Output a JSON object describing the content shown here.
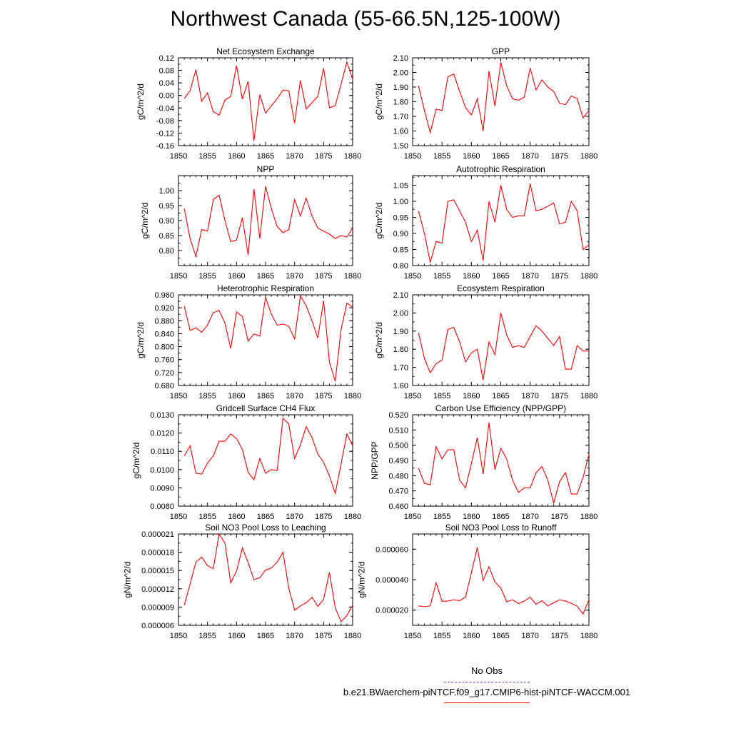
{
  "title": "Northwest Canada (55-66.5N,125-100W)",
  "legend": {
    "obs_label": "No Obs",
    "model_label": "b.e21.BWaerchem-piNTCF.f09_g17.CMIP6-hist-piNTCF-WACCM.001",
    "model_color": "#ff0000",
    "obs_color": "#4a4ad0"
  },
  "chart_data": [
    {
      "type": "line",
      "title": "Net Ecosystem Exchange",
      "ylabel": "gC/m^2/d",
      "xlim": [
        1850,
        1880
      ],
      "ylim": [
        -0.16,
        0.12
      ],
      "xticks": [
        "1850",
        "1855",
        "1860",
        "1865",
        "1870",
        "1875",
        "1880"
      ],
      "yticks": [
        "-0.16",
        "-0.12",
        "-0.08",
        "-0.04",
        "0.00",
        "0.04",
        "0.08",
        "0.12"
      ],
      "x": [
        1851,
        1852,
        1853,
        1854,
        1855,
        1856,
        1857,
        1858,
        1859,
        1860,
        1861,
        1862,
        1863,
        1864,
        1865,
        1866,
        1867,
        1868,
        1869,
        1870,
        1871,
        1872,
        1873,
        1874,
        1875,
        1876,
        1877,
        1878,
        1879,
        1880
      ],
      "y": [
        -0.01,
        0.015,
        0.082,
        -0.018,
        0.008,
        -0.052,
        -0.063,
        -0.015,
        -0.003,
        0.095,
        -0.012,
        0.045,
        -0.145,
        0.003,
        -0.056,
        -0.033,
        -0.01,
        0.017,
        0.015,
        -0.088,
        0.048,
        -0.043,
        -0.023,
        -0.003,
        0.087,
        -0.04,
        -0.032,
        0.035,
        0.107,
        0.052
      ]
    },
    {
      "type": "line",
      "title": "GPP",
      "ylabel": "gC/m^2/d",
      "xlim": [
        1850,
        1880
      ],
      "ylim": [
        1.5,
        2.1
      ],
      "xticks": [
        "1850",
        "1855",
        "1860",
        "1865",
        "1870",
        "1875",
        "1880"
      ],
      "yticks": [
        "1.50",
        "1.60",
        "1.70",
        "1.80",
        "1.90",
        "2.00",
        "2.10"
      ],
      "x": [
        1851,
        1852,
        1853,
        1854,
        1855,
        1856,
        1857,
        1858,
        1859,
        1860,
        1861,
        1862,
        1863,
        1864,
        1865,
        1866,
        1867,
        1868,
        1869,
        1870,
        1871,
        1872,
        1873,
        1874,
        1875,
        1876,
        1877,
        1878,
        1879,
        1880
      ],
      "y": [
        1.91,
        1.74,
        1.59,
        1.75,
        1.74,
        1.97,
        1.99,
        1.87,
        1.76,
        1.71,
        1.82,
        1.6,
        2.01,
        1.77,
        2.07,
        1.91,
        1.82,
        1.81,
        1.83,
        2.03,
        1.88,
        1.95,
        1.9,
        1.87,
        1.79,
        1.78,
        1.84,
        1.82,
        1.69,
        1.74
      ]
    },
    {
      "type": "line",
      "title": "NPP",
      "ylabel": "gC/m^2/d",
      "xlim": [
        1850,
        1880
      ],
      "ylim": [
        0.75,
        1.05
      ],
      "xticks": [
        "1850",
        "1855",
        "1860",
        "1865",
        "1870",
        "1875",
        "1880"
      ],
      "yticks": [
        "0.80",
        "0.85",
        "0.90",
        "0.95",
        "1.00"
      ],
      "x": [
        1851,
        1852,
        1853,
        1854,
        1855,
        1856,
        1857,
        1858,
        1859,
        1860,
        1861,
        1862,
        1863,
        1864,
        1865,
        1866,
        1867,
        1868,
        1869,
        1870,
        1871,
        1872,
        1873,
        1874,
        1875,
        1876,
        1877,
        1878,
        1879,
        1880
      ],
      "y": [
        0.94,
        0.84,
        0.78,
        0.87,
        0.865,
        0.97,
        0.985,
        0.9,
        0.83,
        0.835,
        0.91,
        0.785,
        1.005,
        0.84,
        1.015,
        0.94,
        0.88,
        0.86,
        0.87,
        0.97,
        0.915,
        0.975,
        0.915,
        0.875,
        0.865,
        0.855,
        0.84,
        0.85,
        0.845,
        0.875
      ]
    },
    {
      "type": "line",
      "title": "Autotrophic Respiration",
      "ylabel": "gC/m^2/d",
      "xlim": [
        1850,
        1880
      ],
      "ylim": [
        0.8,
        1.08
      ],
      "xticks": [
        "1850",
        "1855",
        "1860",
        "1865",
        "1870",
        "1875",
        "1880"
      ],
      "yticks": [
        "0.80",
        "0.85",
        "0.90",
        "0.95",
        "1.00",
        "1.05"
      ],
      "x": [
        1851,
        1852,
        1853,
        1854,
        1855,
        1856,
        1857,
        1858,
        1859,
        1860,
        1861,
        1862,
        1863,
        1864,
        1865,
        1866,
        1867,
        1868,
        1869,
        1870,
        1871,
        1872,
        1873,
        1874,
        1875,
        1876,
        1877,
        1878,
        1879,
        1880
      ],
      "y": [
        0.97,
        0.9,
        0.81,
        0.875,
        0.87,
        1.0,
        1.005,
        0.97,
        0.935,
        0.875,
        0.91,
        0.815,
        1.0,
        0.935,
        1.05,
        0.975,
        0.95,
        0.955,
        0.955,
        1.055,
        0.97,
        0.975,
        0.985,
        0.995,
        0.93,
        0.935,
        1.0,
        0.97,
        0.85,
        0.865
      ]
    },
    {
      "type": "line",
      "title": "Heterotrophic Respiration",
      "ylabel": "gC/m^2/d",
      "xlim": [
        1850,
        1880
      ],
      "ylim": [
        0.68,
        0.96
      ],
      "xticks": [
        "1850",
        "1855",
        "1860",
        "1865",
        "1870",
        "1875",
        "1880"
      ],
      "yticks": [
        "0.680",
        "0.720",
        "0.760",
        "0.800",
        "0.840",
        "0.880",
        "0.920",
        "0.960"
      ],
      "x": [
        1851,
        1852,
        1853,
        1854,
        1855,
        1856,
        1857,
        1858,
        1859,
        1860,
        1861,
        1862,
        1863,
        1864,
        1865,
        1866,
        1867,
        1868,
        1869,
        1870,
        1871,
        1872,
        1873,
        1874,
        1875,
        1876,
        1877,
        1878,
        1879,
        1880
      ],
      "y": [
        0.925,
        0.85,
        0.858,
        0.844,
        0.867,
        0.905,
        0.912,
        0.873,
        0.794,
        0.907,
        0.893,
        0.817,
        0.839,
        0.833,
        0.952,
        0.9,
        0.866,
        0.87,
        0.863,
        0.824,
        0.957,
        0.926,
        0.879,
        0.827,
        0.942,
        0.752,
        0.693,
        0.851,
        0.935,
        0.922
      ]
    },
    {
      "type": "line",
      "title": "Ecosystem Respiration",
      "ylabel": "gC/m^2/d",
      "xlim": [
        1850,
        1880
      ],
      "ylim": [
        1.6,
        2.1
      ],
      "xticks": [
        "1850",
        "1855",
        "1860",
        "1865",
        "1870",
        "1875",
        "1880"
      ],
      "yticks": [
        "1.60",
        "1.70",
        "1.80",
        "1.90",
        "2.00",
        "2.10"
      ],
      "x": [
        1851,
        1852,
        1853,
        1854,
        1855,
        1856,
        1857,
        1858,
        1859,
        1860,
        1861,
        1862,
        1863,
        1864,
        1865,
        1866,
        1867,
        1868,
        1869,
        1870,
        1871,
        1872,
        1873,
        1874,
        1875,
        1876,
        1877,
        1878,
        1879,
        1880
      ],
      "y": [
        1.89,
        1.75,
        1.67,
        1.72,
        1.74,
        1.91,
        1.92,
        1.84,
        1.73,
        1.78,
        1.8,
        1.63,
        1.84,
        1.77,
        2.0,
        1.88,
        1.81,
        1.82,
        1.81,
        1.87,
        1.93,
        1.9,
        1.86,
        1.82,
        1.87,
        1.69,
        1.69,
        1.82,
        1.79,
        1.79
      ]
    },
    {
      "type": "line",
      "title": "Gridcell Surface CH4 Flux",
      "ylabel": "gC/m^2/d",
      "xlim": [
        1850,
        1880
      ],
      "ylim": [
        0.008,
        0.013
      ],
      "xticks": [
        "1850",
        "1855",
        "1860",
        "1865",
        "1870",
        "1875",
        "1880"
      ],
      "yticks": [
        "0.0080",
        "0.0090",
        "0.0100",
        "0.0110",
        "0.0120",
        "0.0130"
      ],
      "x": [
        1851,
        1852,
        1853,
        1854,
        1855,
        1856,
        1857,
        1858,
        1859,
        1860,
        1861,
        1862,
        1863,
        1864,
        1865,
        1866,
        1867,
        1868,
        1869,
        1870,
        1871,
        1872,
        1873,
        1874,
        1875,
        1876,
        1877,
        1878,
        1879,
        1880
      ],
      "y": [
        0.01075,
        0.0113,
        0.0098,
        0.00975,
        0.01035,
        0.01075,
        0.01155,
        0.01155,
        0.01195,
        0.0117,
        0.0111,
        0.00985,
        0.00945,
        0.0106,
        0.0098,
        0.01,
        0.00995,
        0.0128,
        0.0125,
        0.0106,
        0.01135,
        0.01235,
        0.01175,
        0.01085,
        0.0104,
        0.00965,
        0.0087,
        0.0103,
        0.01195,
        0.0113
      ]
    },
    {
      "type": "line",
      "title": "Carbon Use Efficiency (NPP/GPP)",
      "ylabel": "NPP/GPP",
      "xlim": [
        1850,
        1880
      ],
      "ylim": [
        0.46,
        0.52
      ],
      "xticks": [
        "1850",
        "1855",
        "1860",
        "1865",
        "1870",
        "1875",
        "1880"
      ],
      "yticks": [
        "0.460",
        "0.470",
        "0.480",
        "0.490",
        "0.500",
        "0.510",
        "0.520"
      ],
      "x": [
        1851,
        1852,
        1853,
        1854,
        1855,
        1856,
        1857,
        1858,
        1859,
        1860,
        1861,
        1862,
        1863,
        1864,
        1865,
        1866,
        1867,
        1868,
        1869,
        1870,
        1871,
        1872,
        1873,
        1874,
        1875,
        1876,
        1877,
        1878,
        1879,
        1880
      ],
      "y": [
        0.485,
        0.475,
        0.474,
        0.499,
        0.491,
        0.497,
        0.497,
        0.477,
        0.472,
        0.488,
        0.505,
        0.481,
        0.515,
        0.484,
        0.498,
        0.491,
        0.477,
        0.469,
        0.472,
        0.472,
        0.482,
        0.486,
        0.477,
        0.462,
        0.476,
        0.482,
        0.468,
        0.468,
        0.479,
        0.494
      ]
    },
    {
      "type": "line",
      "title": "Soil NO3 Pool Loss to Leaching",
      "ylabel": "gN/m^2/d",
      "xlim": [
        1850,
        1880
      ],
      "ylim": [
        6e-06,
        2.1e-05
      ],
      "xticks": [
        "1850",
        "1855",
        "1860",
        "1865",
        "1870",
        "1875",
        "1880"
      ],
      "yticks": [
        "0.000006",
        "0.000009",
        "0.000012",
        "0.000015",
        "0.000018",
        "0.000021"
      ],
      "x": [
        1851,
        1852,
        1853,
        1854,
        1855,
        1856,
        1857,
        1858,
        1859,
        1860,
        1861,
        1862,
        1863,
        1864,
        1865,
        1866,
        1867,
        1868,
        1869,
        1870,
        1871,
        1872,
        1873,
        1874,
        1875,
        1876,
        1877,
        1878,
        1879,
        1880
      ],
      "y": [
        9.3e-06,
        1.28e-05,
        1.64e-05,
        1.72e-05,
        1.58e-05,
        1.53e-05,
        2.1e-05,
        1.95e-05,
        1.3e-05,
        1.49e-05,
        1.87e-05,
        1.63e-05,
        1.35e-05,
        1.38e-05,
        1.51e-05,
        1.54e-05,
        1.64e-05,
        1.8e-05,
        1.21e-05,
        8.5e-06,
        9.2e-06,
        9.7e-06,
        1.06e-05,
        9.1e-06,
        1.03e-05,
        1.47e-05,
        8.9e-06,
        6.6e-06,
        7.6e-06,
        9.3e-06
      ]
    },
    {
      "type": "line",
      "title": "Soil NO3 Pool Loss to Runoff",
      "ylabel": "gN/m^2/d",
      "xlim": [
        1850,
        1880
      ],
      "ylim": [
        1e-05,
        7e-05
      ],
      "xticks": [
        "1850",
        "1855",
        "1860",
        "1865",
        "1870",
        "1875",
        "1880"
      ],
      "yticks": [
        "0.000020",
        "0.000040",
        "0.000060"
      ],
      "x": [
        1851,
        1852,
        1853,
        1854,
        1855,
        1856,
        1857,
        1858,
        1859,
        1860,
        1861,
        1862,
        1863,
        1864,
        1865,
        1866,
        1867,
        1868,
        1869,
        1870,
        1871,
        1872,
        1873,
        1874,
        1875,
        1876,
        1877,
        1878,
        1879,
        1880
      ],
      "y": [
        2.28e-05,
        2.22e-05,
        2.28e-05,
        3.8e-05,
        2.58e-05,
        2.6e-05,
        2.68e-05,
        2.62e-05,
        2.85e-05,
        4.45e-05,
        6.12e-05,
        3.95e-05,
        4.85e-05,
        3.85e-05,
        3.45e-05,
        2.55e-05,
        2.68e-05,
        2.43e-05,
        2.6e-05,
        2.85e-05,
        2.38e-05,
        2.62e-05,
        2.28e-05,
        2.48e-05,
        2.68e-05,
        2.6e-05,
        2.45e-05,
        2.25e-05,
        1.75e-05,
        2.68e-05
      ]
    }
  ]
}
